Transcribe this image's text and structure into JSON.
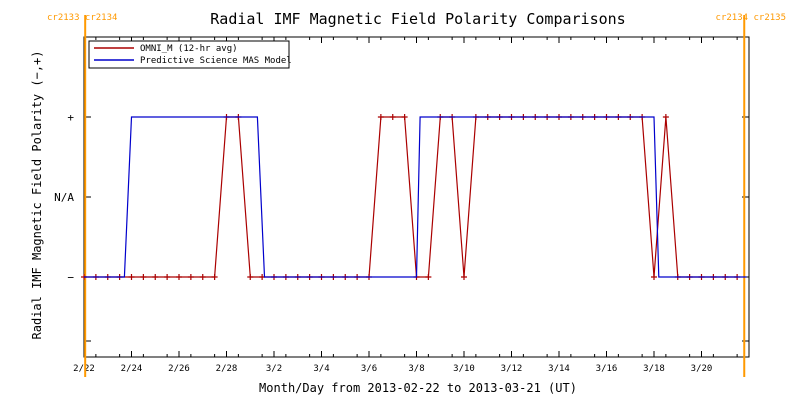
{
  "chart_data": {
    "type": "line",
    "title": "Radial IMF Magnetic Field Polarity Comparisons",
    "xlabel": "Month/Day from 2013-02-22 to 2013-03-21 (UT)",
    "ylabel": "Radial IMF Magnetic Field Polarity (−,+)",
    "x_range_days": [
      0,
      28
    ],
    "xticks": [
      {
        "day": 0,
        "label": "2/22"
      },
      {
        "day": 2,
        "label": "2/24"
      },
      {
        "day": 4,
        "label": "2/26"
      },
      {
        "day": 6,
        "label": "2/28"
      },
      {
        "day": 8,
        "label": "3/2"
      },
      {
        "day": 10,
        "label": "3/4"
      },
      {
        "day": 12,
        "label": "3/6"
      },
      {
        "day": 14,
        "label": "3/8"
      },
      {
        "day": 16,
        "label": "3/10"
      },
      {
        "day": 18,
        "label": "3/12"
      },
      {
        "day": 20,
        "label": "3/14"
      },
      {
        "day": 22,
        "label": "3/16"
      },
      {
        "day": 24,
        "label": "3/18"
      },
      {
        "day": 26,
        "label": "3/20"
      }
    ],
    "yticks": [
      {
        "value": -1,
        "label": "−"
      },
      {
        "value": 0,
        "label": "N/A"
      },
      {
        "value": 1,
        "label": "+"
      }
    ],
    "ylim": [
      -2,
      2
    ],
    "carrington_markers": [
      {
        "day": 0.05,
        "label": "cr2133 cr2134",
        "anchor": "left"
      },
      {
        "day": 27.8,
        "label": "cr2134 cr2135",
        "anchor": "right"
      }
    ],
    "marker_color": "#ff9900",
    "legend_position": "top-left",
    "series": [
      {
        "name": "OMNI_M (12-hr avg)",
        "color": "#aa0000",
        "marker": "plus",
        "points": [
          [
            0.0,
            -1
          ],
          [
            0.5,
            -1
          ],
          [
            1.0,
            -1
          ],
          [
            1.5,
            -1
          ],
          [
            2.0,
            -1
          ],
          [
            2.5,
            -1
          ],
          [
            3.0,
            -1
          ],
          [
            3.5,
            -1
          ],
          [
            4.0,
            -1
          ],
          [
            4.5,
            -1
          ],
          [
            5.0,
            -1
          ],
          [
            5.5,
            -1
          ],
          [
            6.0,
            1
          ],
          [
            6.5,
            1
          ],
          [
            7.0,
            -1
          ],
          [
            7.5,
            -1
          ],
          [
            8.0,
            -1
          ],
          [
            8.5,
            -1
          ],
          [
            9.0,
            -1
          ],
          [
            9.5,
            -1
          ],
          [
            10.0,
            -1
          ],
          [
            10.5,
            -1
          ],
          [
            11.0,
            -1
          ],
          [
            11.5,
            -1
          ],
          [
            12.0,
            -1
          ],
          [
            12.5,
            1
          ],
          [
            13.0,
            1
          ],
          [
            13.5,
            1
          ],
          [
            14.0,
            -1
          ],
          [
            14.5,
            -1
          ],
          [
            15.0,
            1
          ],
          [
            15.5,
            1
          ],
          [
            16.0,
            -1
          ],
          [
            16.5,
            1
          ],
          [
            17.0,
            1
          ],
          [
            17.5,
            1
          ],
          [
            18.0,
            1
          ],
          [
            18.5,
            1
          ],
          [
            19.0,
            1
          ],
          [
            19.5,
            1
          ],
          [
            20.0,
            1
          ],
          [
            20.5,
            1
          ],
          [
            21.0,
            1
          ],
          [
            21.5,
            1
          ],
          [
            22.0,
            1
          ],
          [
            22.5,
            1
          ],
          [
            23.0,
            1
          ],
          [
            23.5,
            1
          ],
          [
            24.0,
            -1
          ],
          [
            24.5,
            1
          ],
          [
            25.0,
            -1
          ],
          [
            25.5,
            -1
          ],
          [
            26.0,
            -1
          ],
          [
            26.5,
            -1
          ],
          [
            27.0,
            -1
          ],
          [
            27.5,
            -1
          ]
        ]
      },
      {
        "name": "Predictive Science MAS Model",
        "color": "#0000cc",
        "marker": "none",
        "points": [
          [
            0.0,
            -1
          ],
          [
            1.7,
            -1
          ],
          [
            2.0,
            1
          ],
          [
            7.3,
            1
          ],
          [
            7.6,
            -1
          ],
          [
            14.0,
            -1
          ],
          [
            14.15,
            1
          ],
          [
            24.0,
            1
          ],
          [
            24.2,
            -1
          ],
          [
            27.9,
            -1
          ]
        ]
      }
    ]
  }
}
